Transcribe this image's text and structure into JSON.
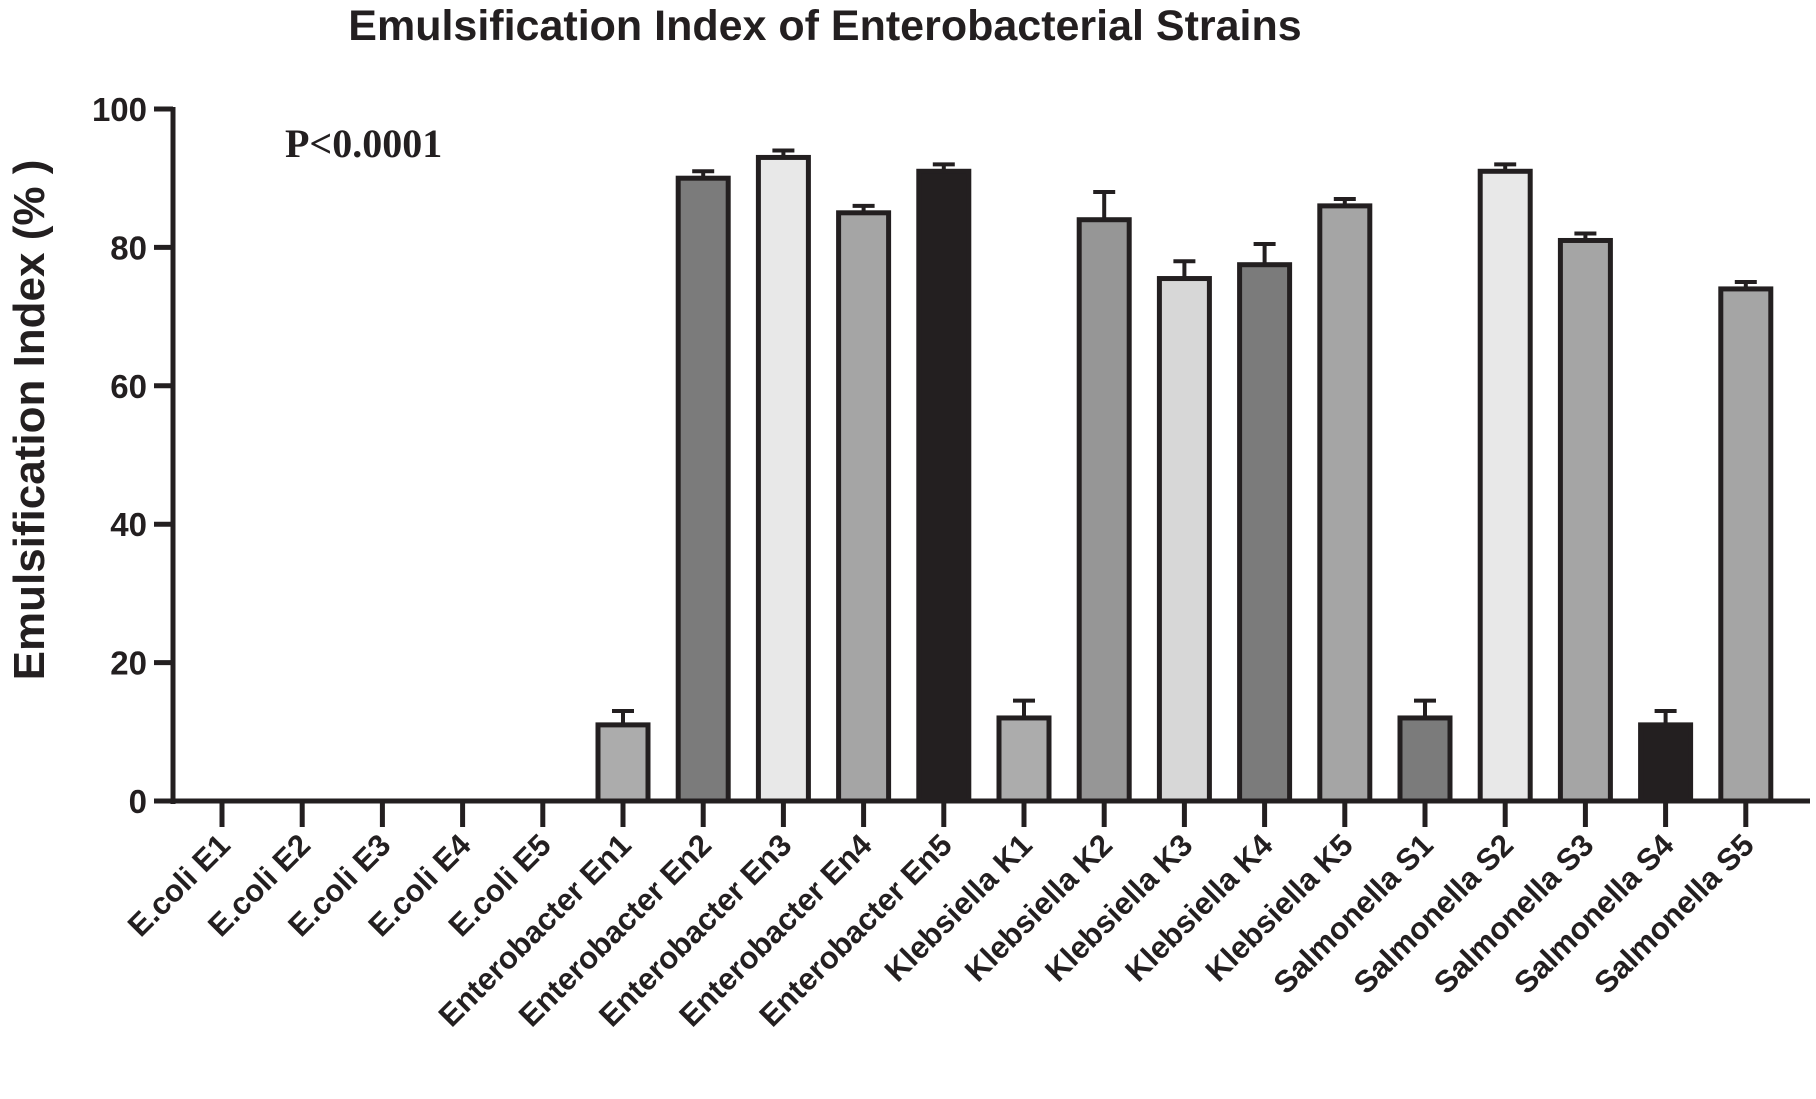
{
  "chart_data": {
    "type": "bar",
    "title": "Emulsification Index of Enterobacterial Strains",
    "xlabel": "",
    "ylabel": "Emulsification Index (% )",
    "ylim": [
      0,
      100
    ],
    "yticks": [
      0,
      20,
      40,
      60,
      80,
      100
    ],
    "annotation": "P<0.0001",
    "grid": false,
    "legend": "none",
    "categories": [
      "E.coli E1",
      "E.coli E2",
      "E.coli E3",
      "E.coli E4",
      "E.coli E5",
      "Enterobacter En1",
      "Enterobacter En2",
      "Enterobacter En3",
      "Enterobacter En4",
      "Enterobacter En5",
      "Klebsiella K1",
      "Klebsiella K2",
      "Klebsiella K3",
      "Klebsiella K4",
      "Klebsiella K5",
      "Salmonella S1",
      "Salmonella S2",
      "Salmonella S3",
      "Salmonella S4",
      "Salmonella S5"
    ],
    "values": [
      0,
      0,
      0,
      0,
      0,
      11,
      90,
      93,
      85,
      91,
      12,
      84,
      75.5,
      77.5,
      86,
      12,
      91,
      81,
      11,
      74
    ],
    "errors": [
      0,
      0,
      0,
      0,
      0,
      2,
      1,
      1,
      1,
      1,
      2.5,
      4,
      2.5,
      3,
      1,
      2.5,
      1,
      1,
      2,
      1
    ],
    "bar_colors": [
      "#ffffff",
      "#ffffff",
      "#ffffff",
      "#ffffff",
      "#ffffff",
      "#acacac",
      "#7b7b7b",
      "#e8e8e8",
      "#a5a5a5",
      "#231f20",
      "#acacac",
      "#969696",
      "#d7d7d7",
      "#7b7b7b",
      "#a5a5a5",
      "#7b7b7b",
      "#e8e8e8",
      "#a5a5a5",
      "#231f20",
      "#a5a5a5"
    ],
    "outline_color": "#231f20"
  }
}
